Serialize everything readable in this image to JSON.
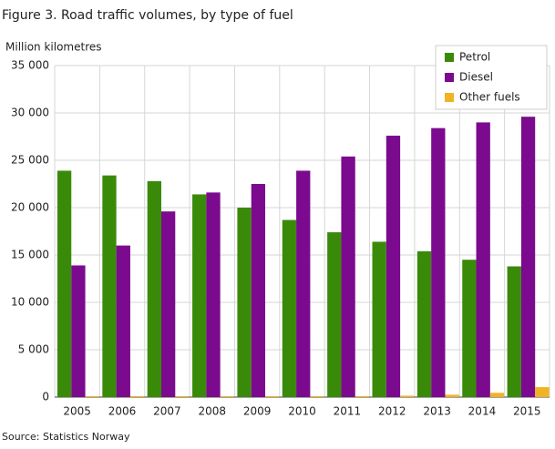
{
  "chart_data": {
    "type": "bar",
    "title": "Figure 3. Road traffic volumes, by type of fuel",
    "y_label": "Million kilometres",
    "source": "Source: Statistics Norway",
    "categories": [
      "2005",
      "2006",
      "2007",
      "2008",
      "2009",
      "2010",
      "2011",
      "2012",
      "2013",
      "2014",
      "2015"
    ],
    "series": [
      {
        "name": "Petrol",
        "color": "#3a8a0a",
        "values": [
          23900,
          23400,
          22800,
          21400,
          20000,
          18700,
          17400,
          16400,
          15400,
          14500,
          13800
        ]
      },
      {
        "name": "Diesel",
        "color": "#7b0a8e",
        "values": [
          13900,
          16000,
          19600,
          21600,
          22500,
          23900,
          25400,
          27600,
          28400,
          29000,
          29600
        ]
      },
      {
        "name": "Other fuels",
        "color": "#f0b323",
        "values": [
          100,
          100,
          100,
          100,
          100,
          100,
          100,
          150,
          250,
          450,
          1050
        ]
      }
    ],
    "ylim": [
      0,
      35000
    ],
    "yticks": [
      0,
      {
        "value": 5000,
        "label": "5 000"
      },
      {
        "value": 10000,
        "label": "10 000"
      },
      {
        "value": 15000,
        "label": "15 000"
      },
      {
        "value": 20000,
        "label": "20 000"
      },
      {
        "value": 25000,
        "label": "25 000"
      },
      {
        "value": 30000,
        "label": "30 000"
      },
      {
        "value": 35000,
        "label": "35 000"
      }
    ],
    "grid": true,
    "legend": "top-right"
  }
}
